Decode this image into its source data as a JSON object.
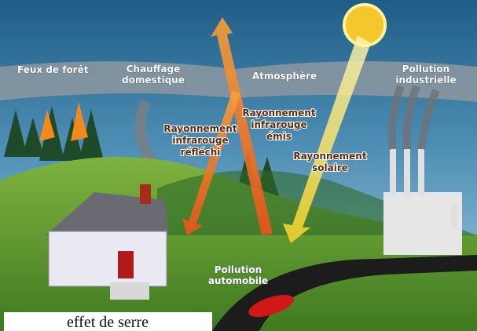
{
  "labels": [
    {
      "lines": [
        "Feux de forêt"
      ]
    },
    {
      "lines": [
        "Chauffage",
        "domestique"
      ]
    },
    {
      "lines": [
        "Atmosphère"
      ]
    },
    {
      "lines": [
        "Pollution",
        "industrielle"
      ]
    },
    {
      "lines": [
        "Rayonnement",
        "infrarouge",
        "réfléchi"
      ]
    },
    {
      "lines": [
        "Rayonnement",
        "infrarouge",
        "émis"
      ]
    },
    {
      "lines": [
        "Rayonnement",
        "solaire"
      ]
    },
    {
      "lines": [
        "Pollution",
        "automobile"
      ]
    }
  ],
  "caption": "effet de serre"
}
